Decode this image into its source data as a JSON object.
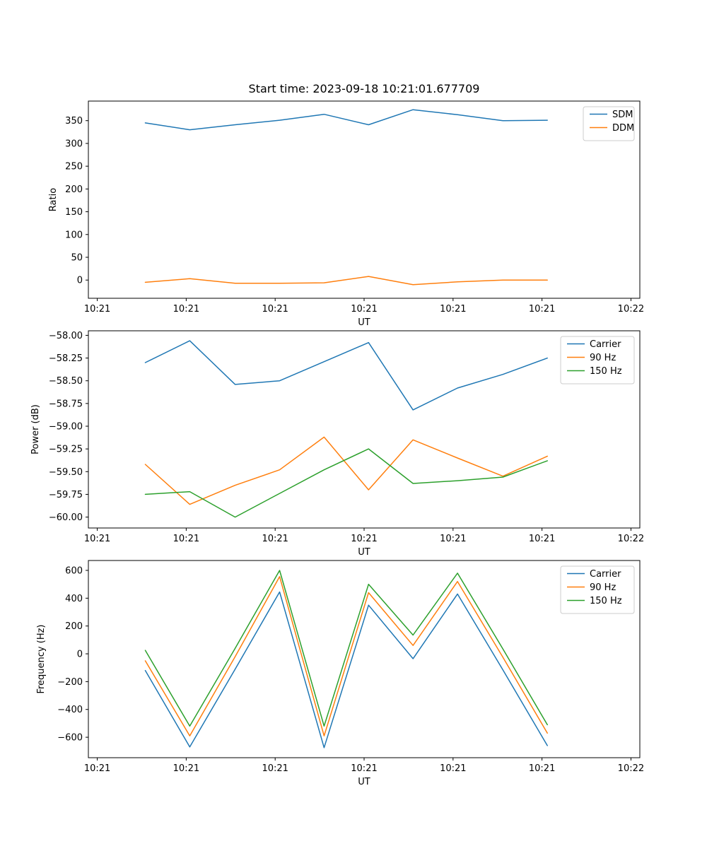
{
  "figure": {
    "title": "Start time: 2023-09-18 10:21:01.677709",
    "background": "#ffffff"
  },
  "palette": {
    "blue": "#1f77b4",
    "orange": "#ff7f0e",
    "green": "#2ca02c",
    "legend_border": "#cccccc",
    "axis": "#000000"
  },
  "chart_data": [
    {
      "type": "line",
      "title": "Start time: 2023-09-18 10:21:01.677709",
      "xlabel": "UT",
      "ylabel": "Ratio",
      "xlim": [
        -1,
        61
      ],
      "ylim": [
        -40,
        393
      ],
      "grid": false,
      "legend_position": "upper right",
      "x": [
        5.4,
        10.4,
        15.5,
        20.5,
        25.5,
        30.5,
        35.5,
        40.5,
        45.6,
        50.6
      ],
      "xticks": {
        "values": [
          0,
          10,
          20,
          30,
          40,
          50,
          60
        ],
        "labels": [
          "10:21",
          "10:21",
          "10:21",
          "10:21",
          "10:21",
          "10:21",
          "10:22"
        ]
      },
      "yticks": {
        "values": [
          0,
          50,
          100,
          150,
          200,
          250,
          300,
          350
        ],
        "labels": [
          "0",
          "50",
          "100",
          "150",
          "200",
          "250",
          "300",
          "350"
        ]
      },
      "series": [
        {
          "name": "SDM",
          "color": "#1f77b4",
          "values": [
            345,
            330,
            341,
            351,
            364,
            341,
            374,
            363,
            350,
            351
          ]
        },
        {
          "name": "DDM",
          "color": "#ff7f0e",
          "values": [
            -5,
            3,
            -7,
            -7,
            -6,
            8,
            -10,
            -4,
            0,
            0
          ]
        }
      ],
      "legend_entries": [
        "SDM",
        "DDM"
      ]
    },
    {
      "type": "line",
      "title": "",
      "xlabel": "UT",
      "ylabel": "Power (dB)",
      "xlim": [
        -1,
        61
      ],
      "ylim": [
        -60.12,
        -57.95
      ],
      "grid": false,
      "legend_position": "upper right",
      "x": [
        5.4,
        10.4,
        15.5,
        20.5,
        25.5,
        30.5,
        35.5,
        40.5,
        45.6,
        50.6
      ],
      "xticks": {
        "values": [
          0,
          10,
          20,
          30,
          40,
          50,
          60
        ],
        "labels": [
          "10:21",
          "10:21",
          "10:21",
          "10:21",
          "10:21",
          "10:21",
          "10:22"
        ]
      },
      "yticks": {
        "values": [
          -60.0,
          -59.75,
          -59.5,
          -59.25,
          -59.0,
          -58.75,
          -58.5,
          -58.25,
          -58.0
        ],
        "labels": [
          "−60.00",
          "−59.75",
          "−59.50",
          "−59.25",
          "−59.00",
          "−58.75",
          "−58.50",
          "−58.25",
          "−58.00"
        ]
      },
      "series": [
        {
          "name": "Carrier",
          "color": "#1f77b4",
          "values": [
            -58.3,
            -58.06,
            -58.54,
            -58.5,
            -58.29,
            -58.08,
            -58.82,
            -58.58,
            -58.43,
            -58.25
          ]
        },
        {
          "name": "90 Hz",
          "color": "#ff7f0e",
          "values": [
            -59.42,
            -59.86,
            -59.65,
            -59.48,
            -59.12,
            -59.7,
            -59.15,
            -59.35,
            -59.55,
            -59.33
          ]
        },
        {
          "name": "150 Hz",
          "color": "#2ca02c",
          "values": [
            -59.75,
            -59.72,
            -60.0,
            -59.74,
            -59.48,
            -59.25,
            -59.63,
            -59.6,
            -59.56,
            -59.38
          ]
        }
      ],
      "legend_entries": [
        "Carrier",
        "90 Hz",
        "150 Hz"
      ]
    },
    {
      "type": "line",
      "title": "",
      "xlabel": "UT",
      "ylabel": "Frequency (Hz)",
      "xlim": [
        -1,
        61
      ],
      "ylim": [
        -747,
        671
      ],
      "grid": false,
      "legend_position": "upper right",
      "x": [
        5.4,
        10.4,
        15.5,
        20.5,
        25.5,
        30.5,
        35.5,
        40.5,
        45.6,
        50.6
      ],
      "xticks": {
        "values": [
          0,
          10,
          20,
          30,
          40,
          50,
          60
        ],
        "labels": [
          "10:21",
          "10:21",
          "10:21",
          "10:21",
          "10:21",
          "10:21",
          "10:22"
        ]
      },
      "yticks": {
        "values": [
          -600,
          -400,
          -200,
          0,
          200,
          400,
          600
        ],
        "labels": [
          "−600",
          "−400",
          "−200",
          "0",
          "200",
          "400",
          "600"
        ]
      },
      "series": [
        {
          "name": "Carrier",
          "color": "#1f77b4",
          "values": [
            -120,
            -670,
            -110,
            445,
            -675,
            350,
            -35,
            430,
            -115,
            -660
          ]
        },
        {
          "name": "90 Hz",
          "color": "#ff7f0e",
          "values": [
            -50,
            -590,
            -20,
            555,
            -590,
            440,
            60,
            520,
            -25,
            -570
          ]
        },
        {
          "name": "150 Hz",
          "color": "#2ca02c",
          "values": [
            25,
            -520,
            40,
            600,
            -520,
            500,
            135,
            580,
            35,
            -510
          ]
        }
      ],
      "legend_entries": [
        "Carrier",
        "90 Hz",
        "150 Hz"
      ]
    }
  ]
}
